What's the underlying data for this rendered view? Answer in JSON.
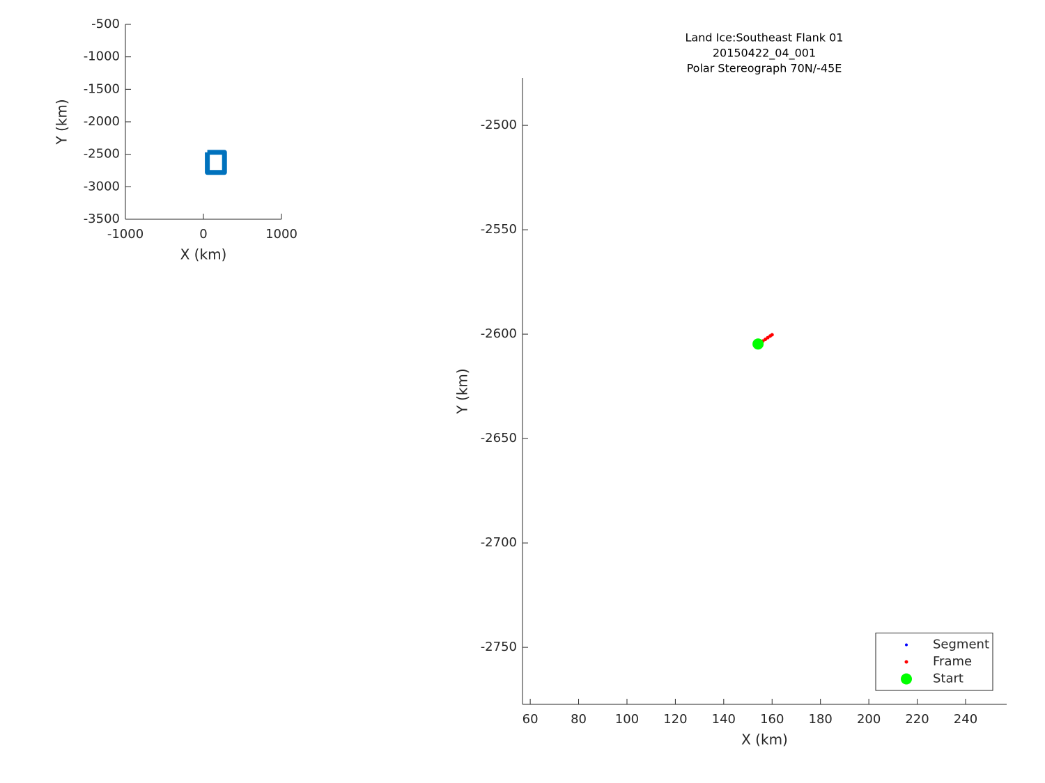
{
  "chart_data": [
    {
      "type": "line",
      "xlabel": "X (km)",
      "ylabel": "Y (km)",
      "xlim": [
        -1000,
        1000
      ],
      "ylim": [
        -3500,
        -500
      ],
      "xticks": [
        -1000,
        0,
        1000
      ],
      "yticks": [
        -3500,
        -3000,
        -2500,
        -2000,
        -1500,
        -1000,
        -500
      ],
      "series": [
        {
          "color": "#0072bd",
          "x": [
            50,
            270,
            270,
            50,
            50
          ],
          "values": [
            -2470,
            -2470,
            -2780,
            -2780,
            -2470
          ]
        }
      ]
    },
    {
      "type": "scatter",
      "title": [
        "Land Ice:Southeast Flank 01",
        "20150422_04_001",
        "Polar Stereograph 70N/-45E"
      ],
      "xlabel": "X (km)",
      "ylabel": "Y (km)",
      "xlim": [
        56.8,
        257
      ],
      "ylim": [
        -2777.3,
        -2477.3
      ],
      "xticks": [
        60,
        80,
        100,
        120,
        140,
        160,
        180,
        200,
        220,
        240
      ],
      "yticks": [
        -2750,
        -2700,
        -2650,
        -2600,
        -2550,
        -2500
      ],
      "legend": "lower right",
      "series": [
        {
          "name": "Segment",
          "color": "#0000ff",
          "x": [
            154.2,
            160.0
          ],
          "values": [
            -2604.7,
            -2600.3
          ]
        },
        {
          "name": "Frame",
          "color": "#ff0000",
          "x": [
            156.2,
            157.2,
            158.2,
            159.2,
            160.0
          ],
          "values": [
            -2603.3,
            -2602.5,
            -2601.7,
            -2600.9,
            -2600.3
          ]
        },
        {
          "name": "Start",
          "color": "#00ff00",
          "x": [
            154.2
          ],
          "values": [
            -2604.7
          ]
        }
      ]
    }
  ]
}
